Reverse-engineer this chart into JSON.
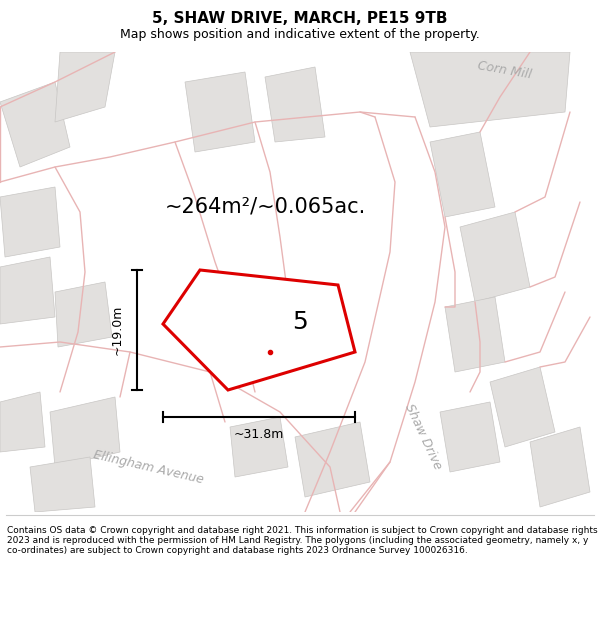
{
  "title": "5, SHAW DRIVE, MARCH, PE15 9TB",
  "subtitle": "Map shows position and indicative extent of the property.",
  "area_label": "~264m²/~0.065ac.",
  "width_label": "~31.8m",
  "height_label": "~19.0m",
  "number_label": "5",
  "footer": "Contains OS data © Crown copyright and database right 2021. This information is subject to Crown copyright and database rights 2023 and is reproduced with the permission of HM Land Registry. The polygons (including the associated geometry, namely x, y co-ordinates) are subject to Crown copyright and database rights 2023 Ordnance Survey 100026316.",
  "map_bg": "#f5f4f2",
  "block_color": "#e2e0de",
  "block_edge": "#c8c6c4",
  "road_color": "#e8b4b4",
  "red_color": "#dd0000",
  "street_label_shaw": "Shaw Drive",
  "street_label_ellingham": "Ellingham Avenue",
  "street_label_cornmill": "Corn Mill",
  "title_fontsize": 11,
  "subtitle_fontsize": 9,
  "area_fontsize": 15,
  "measure_fontsize": 9,
  "number_fontsize": 18,
  "street_fontsize": 9,
  "footer_fontsize": 6.5
}
